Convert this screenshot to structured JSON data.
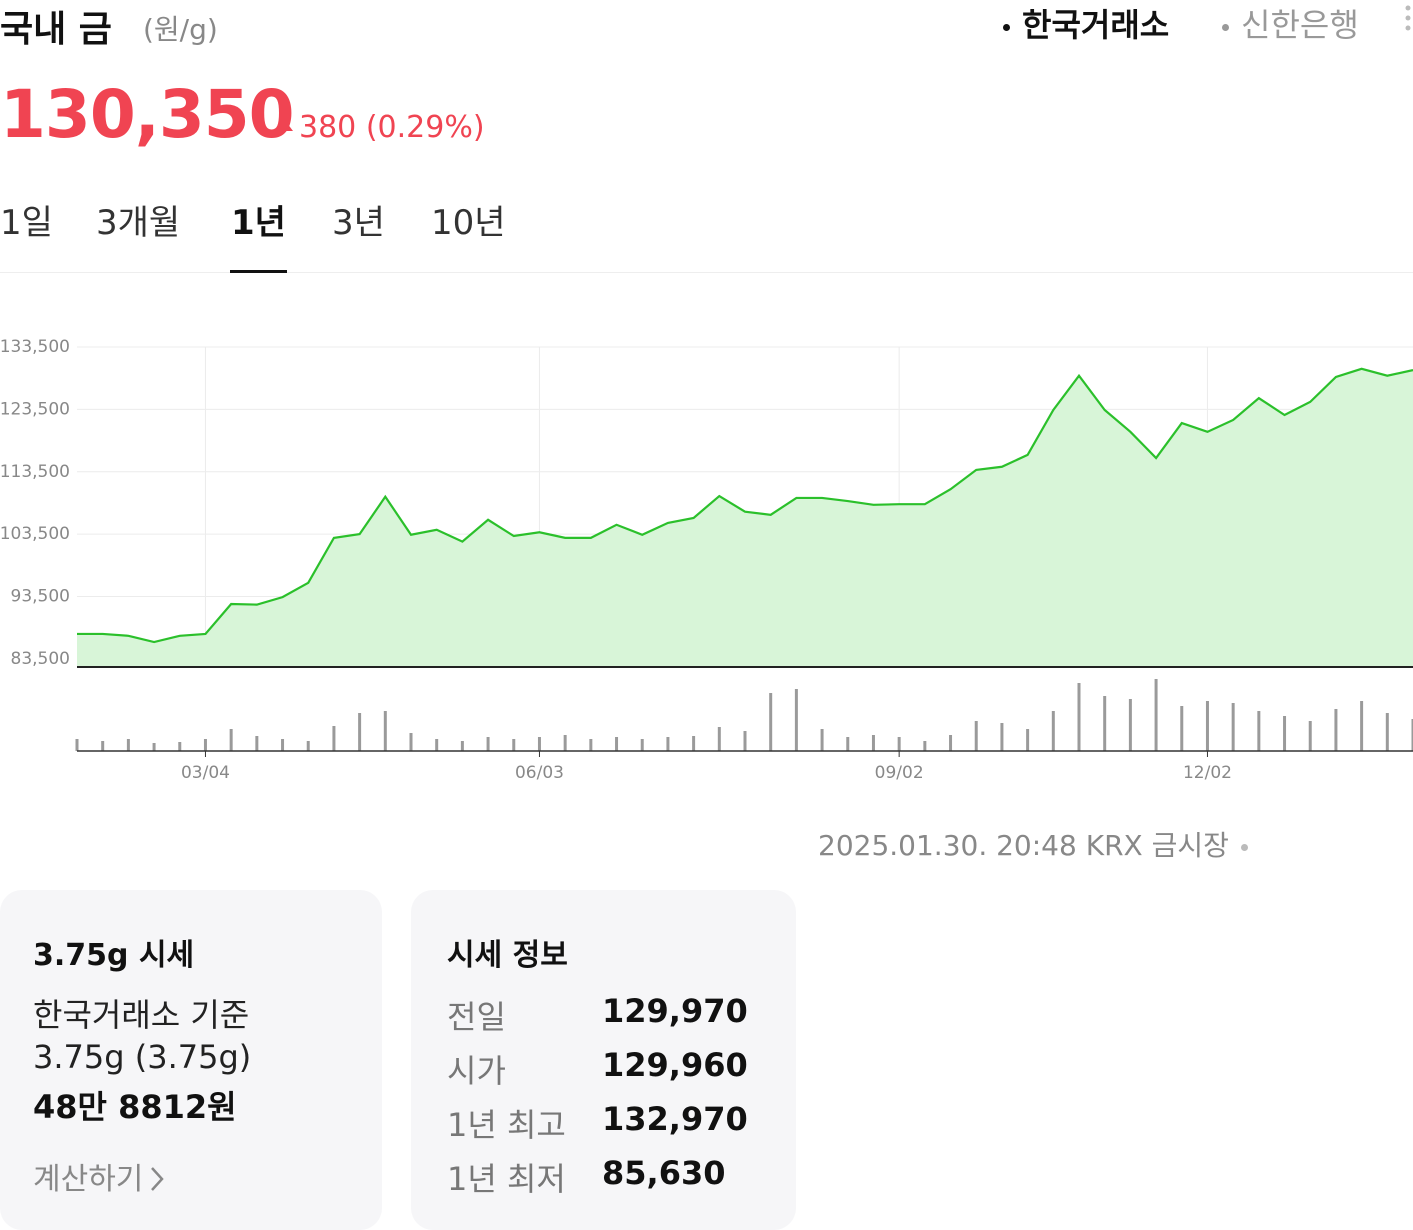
{
  "header": {
    "title": "국내 금",
    "unit": "(원/g)",
    "sources": [
      "한국거래소",
      "신한은행"
    ],
    "active_source": 0
  },
  "price": {
    "value": "130,350",
    "change": "380",
    "change_pct": "(0.29%)"
  },
  "tabs": {
    "items": [
      "1일",
      "3개월",
      "1년",
      "3년",
      "10년"
    ],
    "active": 2
  },
  "chart_data": {
    "type": "line",
    "categories": [
      null,
      null,
      null,
      null,
      null,
      "03/04",
      null,
      null,
      null,
      null,
      null,
      null,
      null,
      null,
      null,
      null,
      null,
      null,
      "06/03",
      null,
      null,
      null,
      null,
      null,
      null,
      null,
      null,
      null,
      null,
      null,
      null,
      null,
      "09/02",
      null,
      null,
      null,
      null,
      null,
      null,
      null,
      null,
      null,
      null,
      null,
      "12/02",
      null,
      null,
      null,
      null,
      null,
      null,
      null,
      null
    ],
    "values": [
      87500,
      87500,
      87200,
      86200,
      87200,
      87500,
      92300,
      92200,
      93400,
      95700,
      102900,
      103500,
      109500,
      103400,
      104200,
      102300,
      105800,
      103200,
      103800,
      102900,
      102900,
      105000,
      103400,
      105300,
      106100,
      109600,
      107100,
      106600,
      109300,
      109300,
      108800,
      108200,
      108300,
      108300,
      110700,
      113800,
      114300,
      116200,
      123400,
      128900,
      123400,
      119900,
      115700,
      121300,
      119900,
      121800,
      125300,
      122600,
      124700,
      128700,
      130000,
      128900,
      129800
    ],
    "volume": [
      12,
      10,
      12,
      8,
      9,
      12,
      22,
      15,
      12,
      10,
      25,
      38,
      40,
      18,
      12,
      10,
      14,
      12,
      14,
      16,
      12,
      14,
      12,
      14,
      15,
      24,
      20,
      58,
      62,
      22,
      14,
      16,
      14,
      10,
      16,
      30,
      28,
      22,
      40,
      68,
      55,
      52,
      72,
      45,
      50,
      48,
      40,
      35,
      30,
      42,
      50,
      38,
      32
    ],
    "color": "#2bc02b",
    "fill_color": "#d8f5d8",
    "volume_color": "#9a9a9a",
    "ylim": [
      82200,
      133500
    ],
    "yticks": [
      {
        "value": 83500,
        "label": "83,500"
      },
      {
        "value": 93500,
        "label": "93,500"
      },
      {
        "value": 103500,
        "label": "103,500"
      },
      {
        "value": 113500,
        "label": "113,500"
      },
      {
        "value": 123500,
        "label": "123,500"
      },
      {
        "value": 133500,
        "label": "133,500"
      }
    ],
    "grid": true
  },
  "timestamp": "2025.01.30. 20:48 KRX 금시장",
  "card_gram": {
    "title": "3.75g 시세",
    "basis": "한국거래소 기준",
    "weight": "3.75g (3.75g)",
    "amount": "48만 8812원",
    "link": "계산하기"
  },
  "card_info": {
    "title": "시세 정보",
    "rows": [
      [
        "전일",
        "129,970"
      ],
      [
        "시가",
        "129,960"
      ],
      [
        "1년 최고",
        "132,970"
      ],
      [
        "1년 최저",
        "85,630"
      ]
    ]
  }
}
